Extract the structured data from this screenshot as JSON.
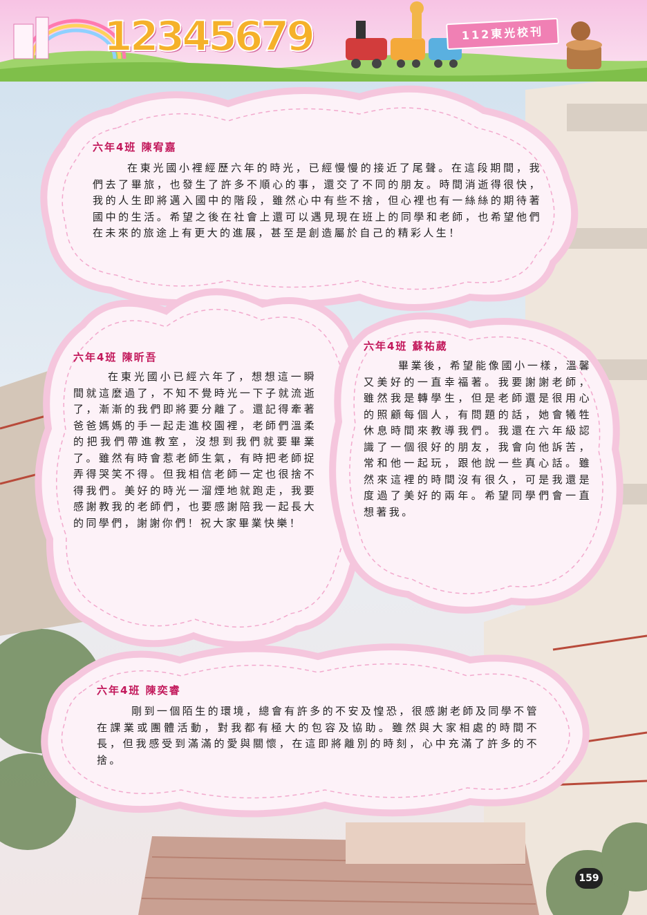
{
  "header": {
    "banner_numbers": "12345679",
    "school_title": "112東光校刊"
  },
  "colors": {
    "accent": "#f080b4",
    "heading": "#c2185b",
    "bubble_border": "#f5c6dd"
  },
  "essays": [
    {
      "author": "六年4班 陳宥嘉",
      "body": "在東光國小裡經歷六年的時光，已經慢慢的接近了尾聲。在這段期間，我們去了畢旅，也發生了許多不順心的事，還交了不同的朋友。時間消逝得很快，我的人生即將邁入國中的階段，雖然心中有些不捨，但心裡也有一絲絲的期待著國中的生活。希望之後在社會上還可以遇見現在班上的同學和老師，也希望他們在未來的旅途上有更大的進展，甚至是創造屬於自己的精彩人生！"
    },
    {
      "author": "六年4班 陳昕吾",
      "body": "在東光國小已經六年了，想想這一瞬間就這麼過了，不知不覺時光一下子就流逝了，漸漸的我們即將要分離了。還記得牽著爸爸媽媽的手一起走進校園裡，老師們溫柔的把我們帶進教室，沒想到我們就要畢業了。雖然有時會惹老師生氣，有時把老師捉弄得哭笑不得。但我相信老師一定也很捨不得我們。美好的時光一溜煙地就跑走，我要感謝教我的老師們，也要感謝陪我一起長大的同學們，謝謝你們！祝大家畢業快樂！"
    },
    {
      "author": "六年4班 蘇祐葳",
      "body": "畢業後，希望能像國小一樣，溫馨又美好的一直幸福著。我要謝謝老師，雖然我是轉學生，但是老師還是很用心的照顧每個人，有問題的話，她會犧牲休息時間來教導我們。我還在六年級認識了一個很好的朋友，我會向他訴苦，常和他一起玩，跟他說一些真心話。雖然來這裡的時間沒有很久，可是我還是度過了美好的兩年。希望同學們會一直想著我。"
    },
    {
      "author": "六年4班 陳奕睿",
      "body": "剛到一個陌生的環境，總會有許多的不安及惶恐，很感謝老師及同學不管在課業或團體活動，對我都有極大的包容及協助。雖然與大家相處的時間不長，但我感受到滿滿的愛與關懷，在這即將離別的時刻，心中充滿了許多的不捨。"
    }
  ],
  "page_number": "159"
}
